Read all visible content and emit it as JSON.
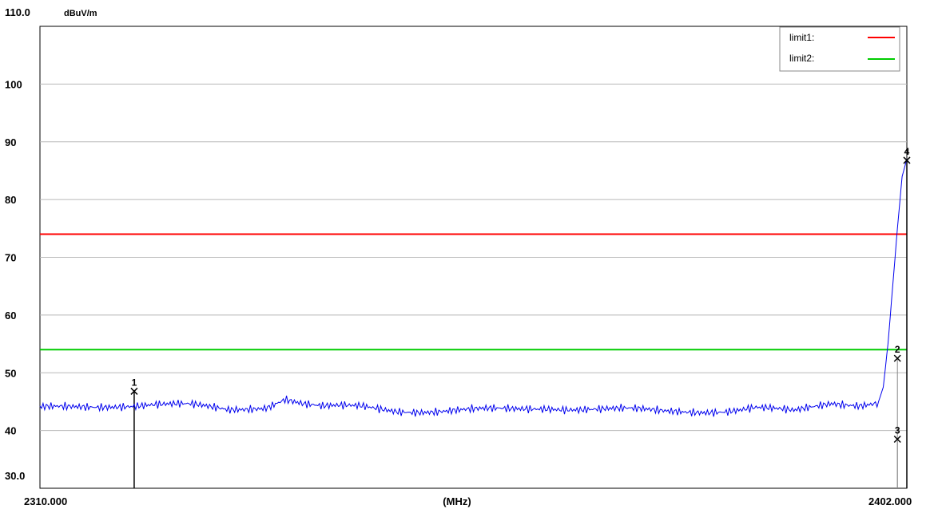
{
  "chart_data": {
    "type": "line",
    "ylabel_top": "110.0",
    "unit": "dBuV/m",
    "xlabel": "(MHz)",
    "x_start_label": "2310.000",
    "x_end_label": "2402.000",
    "y_bottom_label": "30.0",
    "xlim": [
      2310.0,
      2402.0
    ],
    "ylim": [
      30.0,
      110.0
    ],
    "y_ticks": [
      40,
      50,
      60,
      70,
      80,
      90,
      100
    ],
    "grid": true,
    "limits": [
      {
        "name": "limit1:",
        "value": 74,
        "color": "#ff0000"
      },
      {
        "name": "limit2:",
        "value": 54,
        "color": "#00cc00"
      }
    ],
    "legend_position": "top-right",
    "series": [
      {
        "color": "#0000ee",
        "x": [
          2310,
          2314,
          2318,
          2322,
          2326,
          2330,
          2334,
          2336,
          2338,
          2340,
          2344,
          2348,
          2352,
          2356,
          2360,
          2364,
          2368,
          2372,
          2376,
          2380,
          2383,
          2386,
          2390,
          2394,
          2397,
          2399,
          2399.5,
          2400,
          2400.5,
          2401,
          2401.5,
          2402
        ],
        "y": [
          43.8,
          44.1,
          44.4,
          44.5,
          44.3,
          43.6,
          44.2,
          45.6,
          44.6,
          44.0,
          44.1,
          43.5,
          43.4,
          43.5,
          43.6,
          44.0,
          43.8,
          43.6,
          43.3,
          43.4,
          43.5,
          43.9,
          43.2,
          44.8,
          44.6,
          45.0,
          47.5,
          55.0,
          65.0,
          75.0,
          84.0,
          87.0
        ]
      }
    ],
    "markers": [
      {
        "label": "1",
        "x": 2320.0,
        "y": 46.8
      },
      {
        "label": "2",
        "x": 2401.0,
        "y": 52.5
      },
      {
        "label": "3",
        "x": 2401.0,
        "y": 38.5
      },
      {
        "label": "4",
        "x": 2402.0,
        "y": 86.8
      }
    ]
  }
}
